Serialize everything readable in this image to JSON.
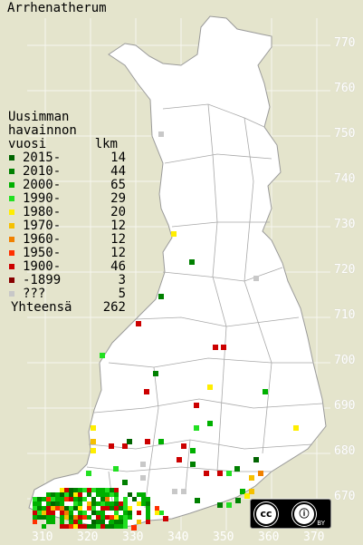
{
  "title": "Arrhenatherum",
  "legend": {
    "heading": [
      "Uusimman",
      "havainnon",
      "vuosi"
    ],
    "count_heading": "lkm",
    "rows": [
      {
        "label": "2015-",
        "count": "14",
        "color": "#006400"
      },
      {
        "label": "2010-",
        "count": "44",
        "color": "#008000"
      },
      {
        "label": "2000-",
        "count": "65",
        "color": "#00b000"
      },
      {
        "label": "1990-",
        "count": "29",
        "color": "#22e022"
      },
      {
        "label": "1980-",
        "count": "20",
        "color": "#ffee00"
      },
      {
        "label": "1970-",
        "count": "12",
        "color": "#f5c000"
      },
      {
        "label": "1960-",
        "count": "12",
        "color": "#f08000"
      },
      {
        "label": "1950-",
        "count": "12",
        "color": "#ff3000"
      },
      {
        "label": "1900-",
        "count": "46",
        "color": "#cc0000"
      },
      {
        "label": "-1899",
        "count": "3",
        "color": "#880000"
      },
      {
        "label": " ???",
        "count": "5",
        "color": "#c8c8c8"
      }
    ],
    "total_label": "Yhteensä",
    "total_count": "262"
  },
  "grid_y_labels": [
    "770",
    "760",
    "750",
    "740",
    "730",
    "720",
    "710",
    "700",
    "690",
    "680",
    "670"
  ],
  "grid_x_labels": [
    "310",
    "320",
    "330",
    "340",
    "350",
    "360",
    "370"
  ],
  "license": {
    "cc": "cc",
    "by": "BY"
  }
}
